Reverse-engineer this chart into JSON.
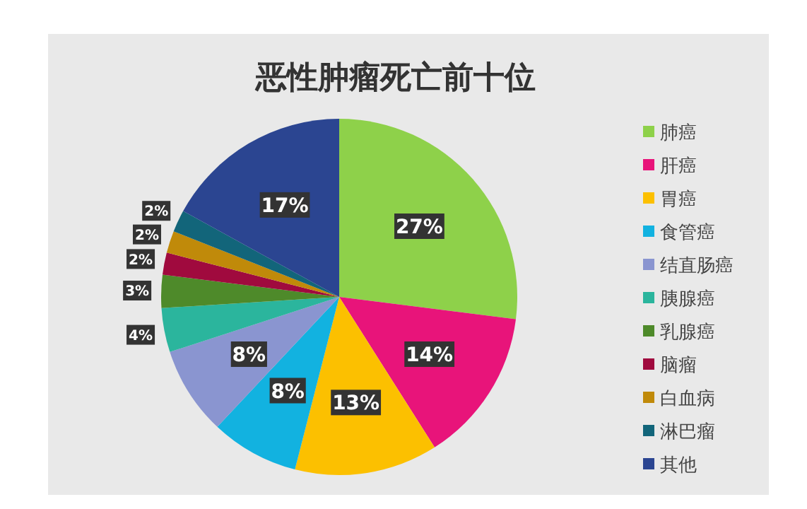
{
  "chart_data": {
    "type": "pie",
    "title": "恶性肿瘤死亡前十位",
    "categories": [
      "肺癌",
      "肝癌",
      "胃癌",
      "食管癌",
      "结直肠癌",
      "胰腺癌",
      "乳腺癌",
      "脑瘤",
      "白血病",
      "淋巴瘤",
      "其他"
    ],
    "values": [
      27,
      14,
      13,
      8,
      8,
      4,
      3,
      2,
      2,
      2,
      17
    ],
    "value_labels": [
      "27%",
      "14%",
      "13%",
      "8%",
      "8%",
      "4%",
      "3%",
      "2%",
      "2%",
      "2%",
      "17%"
    ],
    "colors": [
      "#8ed14a",
      "#e8147a",
      "#fcc000",
      "#12b2e0",
      "#8a95d0",
      "#2bb59d",
      "#4e8a2a",
      "#a00a3e",
      "#c08a0a",
      "#12657a",
      "#2b4591"
    ],
    "legend": "right"
  }
}
